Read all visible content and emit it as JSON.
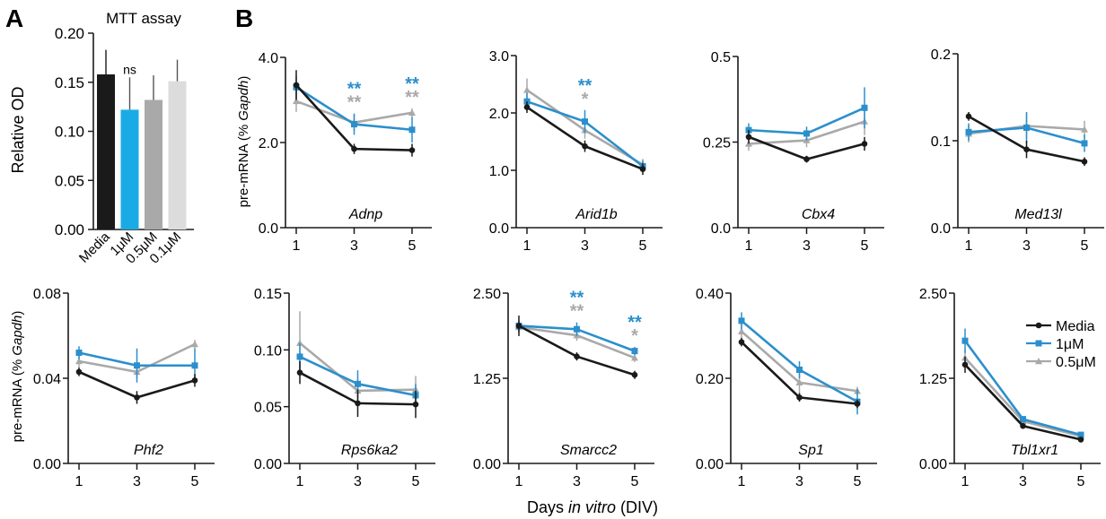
{
  "figure": {
    "panel_a_label": "A",
    "panel_b_label": "B",
    "shared_xlabel": {
      "prefix": "Days ",
      "italic": "in vitro",
      "suffix": " (DIV)"
    },
    "ylabel_prefix": "pre-mRNA (% ",
    "ylabel_italic": "Gapdh",
    "ylabel_suffix": ")"
  },
  "colors": {
    "media": "#1a1a1a",
    "one_uM": "#2b8fcc",
    "half_uM": "#a9a9a9",
    "bar_1uM": "#1aabe6",
    "bar_01uM": "#dcdcdc"
  },
  "legend": {
    "placement": "right of bottom-right panel",
    "items": [
      {
        "label": "Media",
        "color": "#1a1a1a",
        "marker": "circle"
      },
      {
        "label": "1μM",
        "color": "#2b8fcc",
        "marker": "square"
      },
      {
        "label": "0.5μM",
        "color": "#a9a9a9",
        "marker": "triangle"
      }
    ]
  },
  "chart_data": [
    {
      "type": "bar",
      "title": "MTT assay",
      "ylabel": "Relative OD",
      "ylim": [
        0,
        0.2
      ],
      "yticks": [
        "0.00",
        "0.05",
        "0.10",
        "0.15",
        "0.20"
      ],
      "yticks_values": [
        0,
        0.05,
        0.1,
        0.15,
        0.2
      ],
      "categories": [
        "Media",
        "1μM",
        "0.5μM",
        "0.1μM"
      ],
      "values": [
        0.158,
        0.122,
        0.132,
        0.151
      ],
      "errors": [
        0.025,
        0.033,
        0.025,
        0.022
      ],
      "bar_colors": [
        "#1a1a1a",
        "#1aabe6",
        "#a9a9a9",
        "#dcdcdc"
      ],
      "annotations": [
        {
          "category": "1μM",
          "text": "ns"
        }
      ]
    },
    {
      "type": "line",
      "gene": "Adnp",
      "x": [
        1,
        3,
        5
      ],
      "ylim": [
        0,
        4
      ],
      "yticks": [
        "0.0",
        "2.0",
        "4.0"
      ],
      "yticks_values": [
        0,
        2,
        4
      ],
      "series": [
        {
          "name": "Media",
          "values": [
            3.35,
            1.85,
            1.82
          ],
          "errors": [
            0.35,
            0.12,
            0.15
          ]
        },
        {
          "name": "1μM",
          "values": [
            3.3,
            2.43,
            2.3
          ],
          "errors": [
            0.25,
            0.25,
            0.3
          ]
        },
        {
          "name": "0.5μM",
          "values": [
            2.97,
            2.47,
            2.7
          ],
          "errors": [
            0.25,
            0.2,
            0.1
          ]
        }
      ],
      "significance": [
        {
          "x": 3,
          "blue": "**",
          "gray": "**"
        },
        {
          "x": 5,
          "blue": "**",
          "gray": "**"
        }
      ]
    },
    {
      "type": "line",
      "gene": "Arid1b",
      "x": [
        1,
        3,
        5
      ],
      "ylim": [
        0,
        3
      ],
      "yticks": [
        "0.0",
        "1.0",
        "2.0",
        "3.0"
      ],
      "yticks_values": [
        0,
        1,
        2,
        3
      ],
      "series": [
        {
          "name": "Media",
          "values": [
            2.1,
            1.42,
            1.02
          ],
          "errors": [
            0.1,
            0.1,
            0.1
          ]
        },
        {
          "name": "1μM",
          "values": [
            2.2,
            1.85,
            1.07
          ],
          "errors": [
            0.15,
            0.2,
            0.1
          ]
        },
        {
          "name": "0.5μM",
          "values": [
            2.4,
            1.7,
            1.1
          ],
          "errors": [
            0.2,
            0.15,
            0.1
          ]
        }
      ],
      "significance": [
        {
          "x": 3,
          "blue": "**",
          "gray": "*"
        }
      ]
    },
    {
      "type": "line",
      "gene": "Cbx4",
      "x": [
        1,
        3,
        5
      ],
      "ylim": [
        0,
        0.5
      ],
      "yticks": [
        "0.0",
        "0.25",
        "0.5"
      ],
      "yticks_values": [
        0,
        0.25,
        0.5
      ],
      "series": [
        {
          "name": "Media",
          "values": [
            0.265,
            0.2,
            0.245
          ],
          "errors": [
            0.02,
            0.01,
            0.02
          ]
        },
        {
          "name": "1μM",
          "values": [
            0.285,
            0.275,
            0.35
          ],
          "errors": [
            0.02,
            0.02,
            0.06
          ]
        },
        {
          "name": "0.5μM",
          "values": [
            0.245,
            0.255,
            0.31
          ],
          "errors": [
            0.02,
            0.02,
            0.04
          ]
        }
      ],
      "significance": []
    },
    {
      "type": "line",
      "gene": "Med13l",
      "x": [
        1,
        3,
        5
      ],
      "ylim": [
        0,
        0.2
      ],
      "yticks": [
        "0.0",
        "0.1",
        "0.2"
      ],
      "yticks_values": [
        0,
        0.1,
        0.2
      ],
      "series": [
        {
          "name": "Media",
          "values": [
            0.128,
            0.09,
            0.076
          ],
          "errors": [
            0.005,
            0.01,
            0.005
          ]
        },
        {
          "name": "1μM",
          "values": [
            0.11,
            0.115,
            0.097
          ],
          "errors": [
            0.01,
            0.018,
            0.01
          ]
        },
        {
          "name": "0.5μM",
          "values": [
            0.108,
            0.117,
            0.113
          ],
          "errors": [
            0.01,
            0.015,
            0.01
          ]
        }
      ],
      "significance": []
    },
    {
      "type": "line",
      "gene": "Phf2",
      "x": [
        1,
        3,
        5
      ],
      "ylim": [
        0,
        0.08
      ],
      "yticks": [
        "0.00",
        "0.04",
        "0.08"
      ],
      "yticks_values": [
        0,
        0.04,
        0.08
      ],
      "series": [
        {
          "name": "Media",
          "values": [
            0.043,
            0.031,
            0.039
          ],
          "errors": [
            0.002,
            0.003,
            0.003
          ]
        },
        {
          "name": "1μM",
          "values": [
            0.052,
            0.046,
            0.046
          ],
          "errors": [
            0.003,
            0.008,
            0.008
          ]
        },
        {
          "name": "0.5μM",
          "values": [
            0.048,
            0.043,
            0.056
          ],
          "errors": [
            0.003,
            0.003,
            0.002
          ]
        }
      ],
      "significance": []
    },
    {
      "type": "line",
      "gene": "Rps6ka2",
      "x": [
        1,
        3,
        5
      ],
      "ylim": [
        0,
        0.15
      ],
      "yticks": [
        "0.00",
        "0.05",
        "0.10",
        "0.15"
      ],
      "yticks_values": [
        0,
        0.05,
        0.1,
        0.15
      ],
      "series": [
        {
          "name": "Media",
          "values": [
            0.08,
            0.053,
            0.052
          ],
          "errors": [
            0.01,
            0.012,
            0.012
          ]
        },
        {
          "name": "1μM",
          "values": [
            0.094,
            0.07,
            0.06
          ],
          "errors": [
            0.012,
            0.012,
            0.01
          ]
        },
        {
          "name": "0.5μM",
          "values": [
            0.106,
            0.064,
            0.065
          ],
          "errors": [
            0.028,
            0.01,
            0.012
          ]
        }
      ],
      "significance": []
    },
    {
      "type": "line",
      "gene": "Smarcc2",
      "x": [
        1,
        3,
        5
      ],
      "ylim": [
        0,
        2.5
      ],
      "yticks": [
        "0.00",
        "1.25",
        "2.50"
      ],
      "yticks_values": [
        0,
        1.25,
        2.5
      ],
      "series": [
        {
          "name": "Media",
          "values": [
            2.02,
            1.57,
            1.3
          ],
          "errors": [
            0.15,
            0.06,
            0.06
          ]
        },
        {
          "name": "1μM",
          "values": [
            2.02,
            1.97,
            1.65
          ],
          "errors": [
            0.08,
            0.1,
            0.06
          ]
        },
        {
          "name": "0.5μM",
          "values": [
            2.0,
            1.88,
            1.55
          ],
          "errors": [
            0.08,
            0.08,
            0.06
          ]
        }
      ],
      "significance": [
        {
          "x": 3,
          "blue": "**",
          "gray": "**"
        },
        {
          "x": 5,
          "blue": "**",
          "gray": "*"
        }
      ]
    },
    {
      "type": "line",
      "gene": "Sp1",
      "x": [
        1,
        3,
        5
      ],
      "ylim": [
        0,
        0.4
      ],
      "yticks": [
        "0.00",
        "0.20",
        "0.40"
      ],
      "yticks_values": [
        0,
        0.2,
        0.4
      ],
      "series": [
        {
          "name": "Media",
          "values": [
            0.285,
            0.155,
            0.14
          ],
          "errors": [
            0.01,
            0.01,
            0.01
          ]
        },
        {
          "name": "1μM",
          "values": [
            0.335,
            0.22,
            0.145
          ],
          "errors": [
            0.02,
            0.02,
            0.03
          ]
        },
        {
          "name": "0.5μM",
          "values": [
            0.31,
            0.19,
            0.17
          ],
          "errors": [
            0.03,
            0.03,
            0.01
          ]
        }
      ],
      "significance": []
    },
    {
      "type": "line",
      "gene": "Tbl1xr1",
      "x": [
        1,
        3,
        5
      ],
      "ylim": [
        0,
        2.5
      ],
      "yticks": [
        "0.00",
        "1.25",
        "2.50"
      ],
      "yticks_values": [
        0,
        1.25,
        2.5
      ],
      "series": [
        {
          "name": "Media",
          "values": [
            1.45,
            0.55,
            0.35
          ],
          "errors": [
            0.12,
            0.03,
            0.03
          ]
        },
        {
          "name": "1μM",
          "values": [
            1.8,
            0.65,
            0.42
          ],
          "errors": [
            0.18,
            0.04,
            0.03
          ]
        },
        {
          "name": "0.5μM",
          "values": [
            1.55,
            0.62,
            0.4
          ],
          "errors": [
            0.12,
            0.03,
            0.03
          ]
        }
      ],
      "significance": []
    }
  ]
}
